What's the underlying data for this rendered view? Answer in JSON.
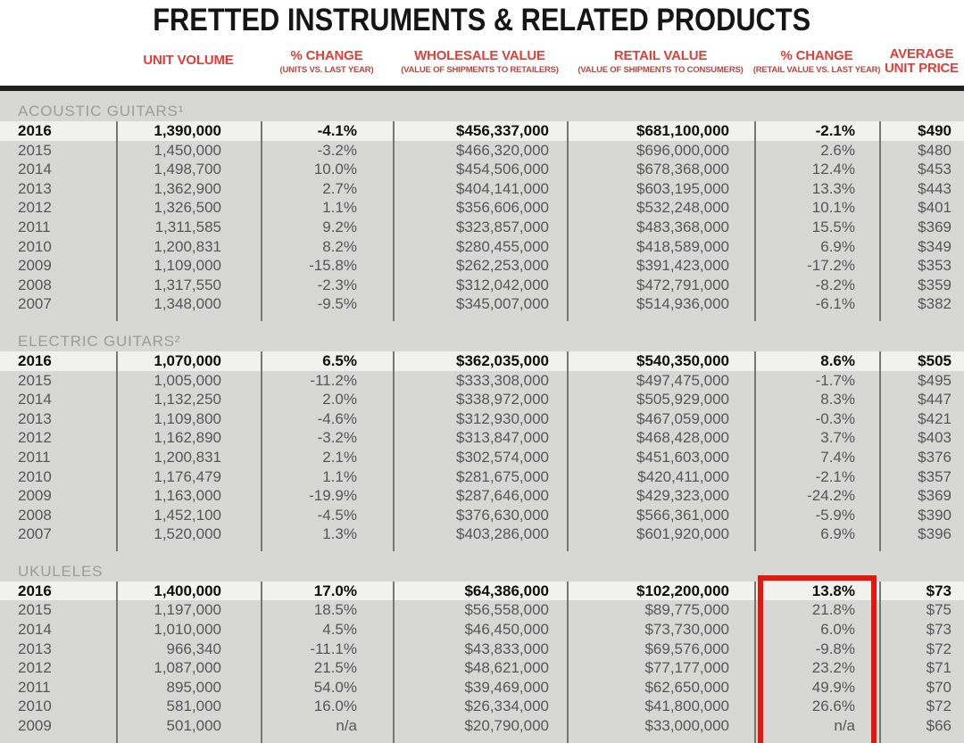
{
  "title": "FRETTED INSTRUMENTS & RELATED PRODUCTS",
  "header": {
    "columns": [
      {
        "label": "UNIT VOLUME",
        "sub": ""
      },
      {
        "label": "% CHANGE",
        "sub": "(UNITS VS. LAST YEAR)"
      },
      {
        "label": "WHOLESALE VALUE",
        "sub": "(VALUE OF SHIPMENTS TO RETAILERS)"
      },
      {
        "label": "RETAIL VALUE",
        "sub": "(VALUE OF SHIPMENTS TO CONSUMERS)"
      },
      {
        "label": "% CHANGE",
        "sub": "(RETAIL VALUE VS. LAST YEAR)"
      },
      {
        "label": "AVERAGE UNIT PRICE",
        "sub": ""
      }
    ]
  },
  "sections": [
    {
      "label": "ACOUSTIC GUITARS¹",
      "rows": [
        [
          "2016",
          "1,390,000",
          "-4.1%",
          "$456,337,000",
          "$681,100,000",
          "-2.1%",
          "$490"
        ],
        [
          "2015",
          "1,450,000",
          "-3.2%",
          "$466,320,000",
          "$696,000,000",
          "2.6%",
          "$480"
        ],
        [
          "2014",
          "1,498,700",
          "10.0%",
          "$454,506,000",
          "$678,368,000",
          "12.4%",
          "$453"
        ],
        [
          "2013",
          "1,362,900",
          "2.7%",
          "$404,141,000",
          "$603,195,000",
          "13.3%",
          "$443"
        ],
        [
          "2012",
          "1,326,500",
          "1.1%",
          "$356,606,000",
          "$532,248,000",
          "10.1%",
          "$401"
        ],
        [
          "2011",
          "1,311,585",
          "9.2%",
          "$323,857,000",
          "$483,368,000",
          "15.5%",
          "$369"
        ],
        [
          "2010",
          "1,200,831",
          "8.2%",
          "$280,455,000",
          "$418,589,000",
          "6.9%",
          "$349"
        ],
        [
          "2009",
          "1,109,000",
          "-15.8%",
          "$262,253,000",
          "$391,423,000",
          "-17.2%",
          "$353"
        ],
        [
          "2008",
          "1,317,550",
          "-2.3%",
          "$312,042,000",
          "$472,791,000",
          "-8.2%",
          "$359"
        ],
        [
          "2007",
          "1,348,000",
          "-9.5%",
          "$345,007,000",
          "$514,936,000",
          "-6.1%",
          "$382"
        ]
      ]
    },
    {
      "label": "ELECTRIC GUITARS²",
      "rows": [
        [
          "2016",
          "1,070,000",
          "6.5%",
          "$362,035,000",
          "$540,350,000",
          "8.6%",
          "$505"
        ],
        [
          "2015",
          "1,005,000",
          "-11.2%",
          "$333,308,000",
          "$497,475,000",
          "-1.7%",
          "$495"
        ],
        [
          "2014",
          "1,132,250",
          "2.0%",
          "$338,972,000",
          "$505,929,000",
          "8.3%",
          "$447"
        ],
        [
          "2013",
          "1,109,800",
          "-4.6%",
          "$312,930,000",
          "$467,059,000",
          "-0.3%",
          "$421"
        ],
        [
          "2012",
          "1,162,890",
          "-3.2%",
          "$313,847,000",
          "$468,428,000",
          "3.7%",
          "$403"
        ],
        [
          "2011",
          "1,200,831",
          "2.1%",
          "$302,574,000",
          "$451,603,000",
          "7.4%",
          "$376"
        ],
        [
          "2010",
          "1,176,479",
          "1.1%",
          "$281,675,000",
          "$420,411,000",
          "-2.1%",
          "$357"
        ],
        [
          "2009",
          "1,163,000",
          "-19.9%",
          "$287,646,000",
          "$429,323,000",
          "-24.2%",
          "$369"
        ],
        [
          "2008",
          "1,452,100",
          "-4.5%",
          "$376,630,000",
          "$566,361,000",
          "-5.9%",
          "$390"
        ],
        [
          "2007",
          "1,520,000",
          "1.3%",
          "$403,286,000",
          "$601,920,000",
          "6.9%",
          "$396"
        ]
      ]
    },
    {
      "label": "UKULELES",
      "rows": [
        [
          "2016",
          "1,400,000",
          "17.0%",
          "$64,386,000",
          "$102,200,000",
          "13.8%",
          "$73"
        ],
        [
          "2015",
          "1,197,000",
          "18.5%",
          "$56,558,000",
          "$89,775,000",
          "21.8%",
          "$75"
        ],
        [
          "2014",
          "1,010,000",
          "4.5%",
          "$46,450,000",
          "$73,730,000",
          "6.0%",
          "$73"
        ],
        [
          "2013",
          "966,340",
          "-11.1%",
          "$43,833,000",
          "$69,576,000",
          "-9.8%",
          "$72"
        ],
        [
          "2012",
          "1,087,000",
          "21.5%",
          "$48,621,000",
          "$77,177,000",
          "23.2%",
          "$71"
        ],
        [
          "2011",
          "895,000",
          "54.0%",
          "$39,469,000",
          "$62,650,000",
          "49.9%",
          "$70"
        ],
        [
          "2010",
          "581,000",
          "16.0%",
          "$26,334,000",
          "$41,800,000",
          "26.6%",
          "$72"
        ],
        [
          "2009",
          "501,000",
          "n/a",
          "$20,790,000",
          "$33,000,000",
          "n/a",
          "$66"
        ]
      ]
    }
  ],
  "highlight": {
    "target_section": "UKULELES",
    "target_column": "% CHANGE (RETAIL VALUE VS. LAST YEAR)",
    "color": "#e8150b"
  },
  "colors": {
    "header_red": "#dd403a",
    "table_bg": "#d7d7d6",
    "first_row_bg": "#f1f1ef",
    "section_label_gray": "#9c9c9c",
    "row_text": "#55565a",
    "divider": "#767676",
    "title_black": "#151515"
  }
}
